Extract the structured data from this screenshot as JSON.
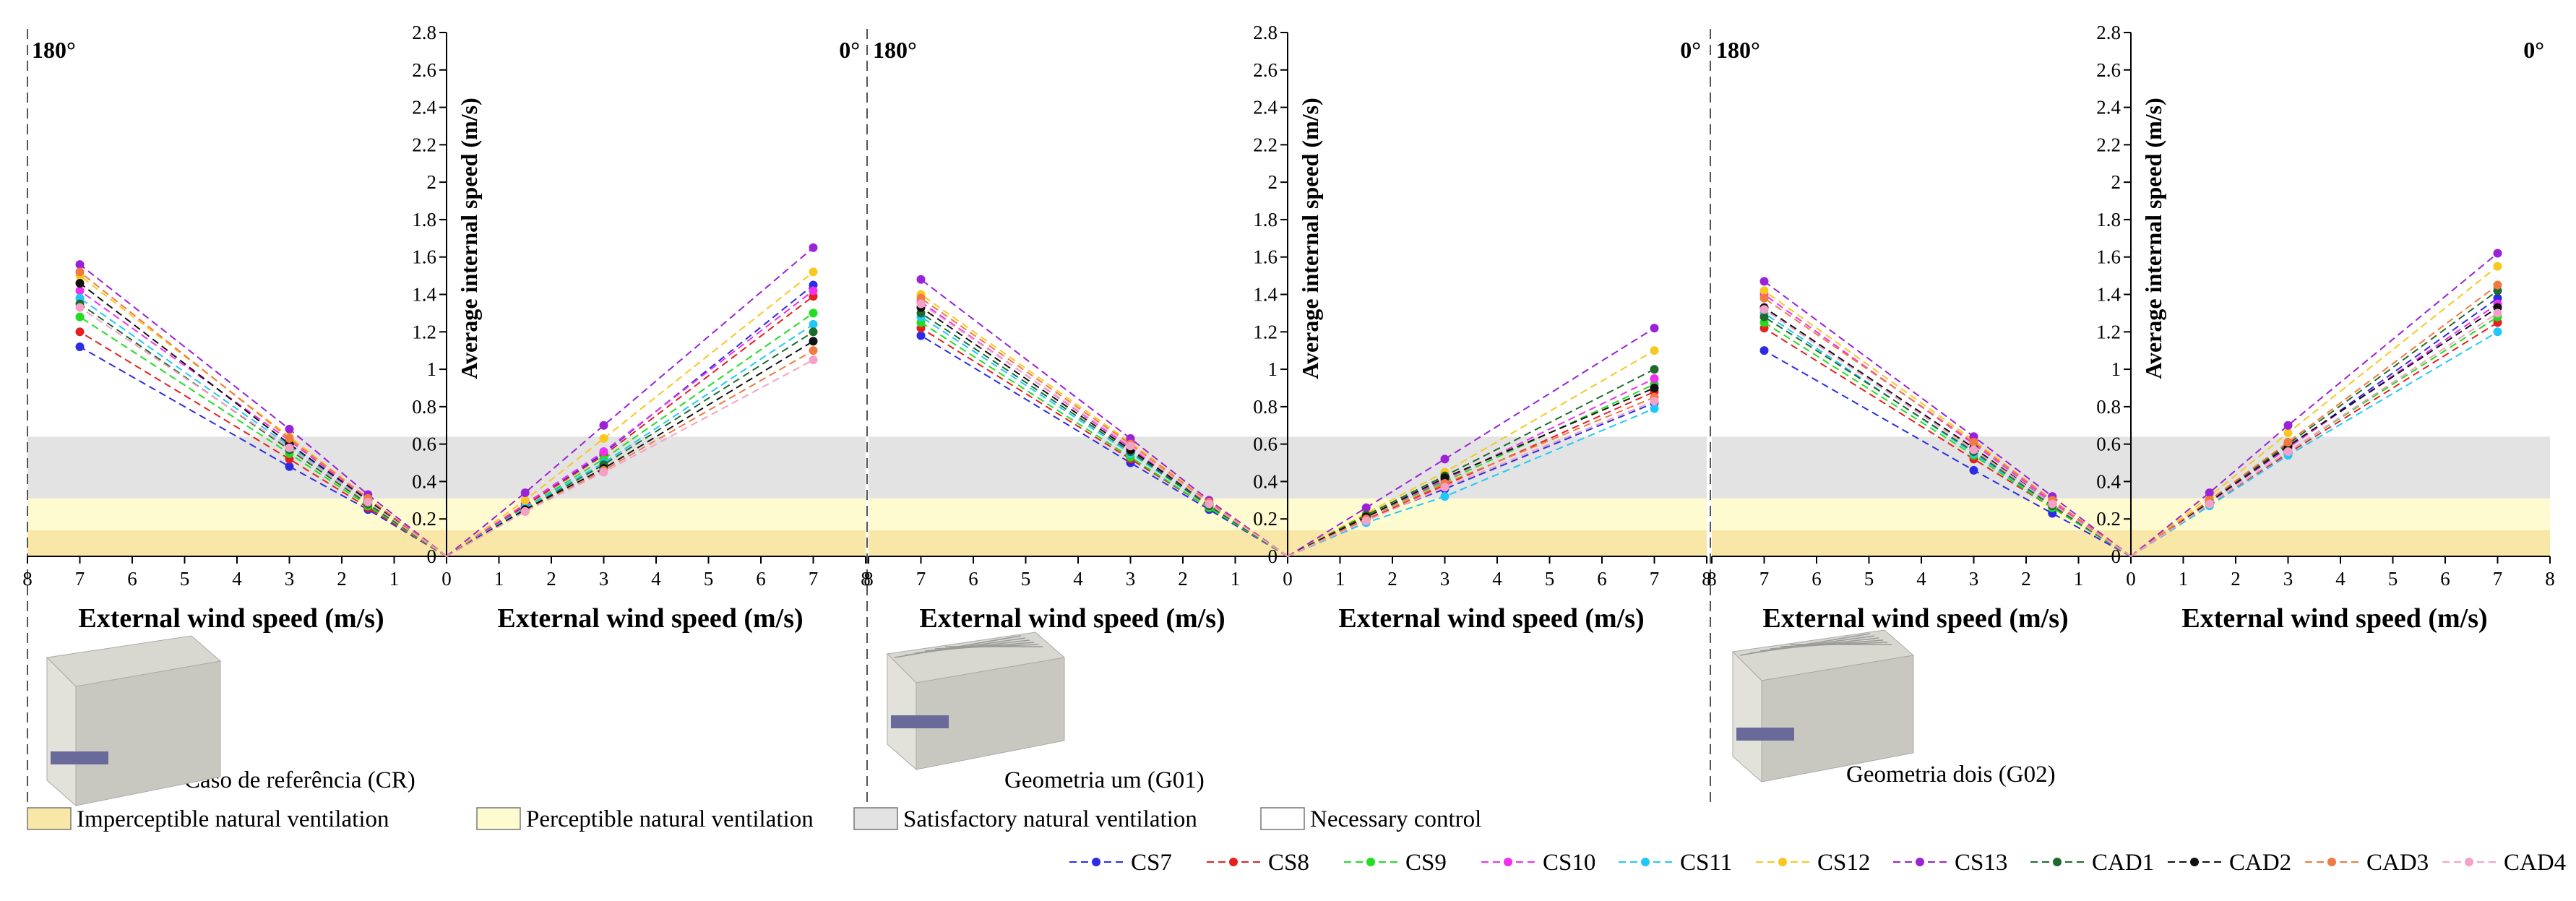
{
  "chart_data": {
    "type": "line",
    "y_axis_label": "Average internal speed (m/s)",
    "x_axis_label": "External wind speed (m/s)",
    "x_ticks": [
      0,
      1,
      2,
      3,
      4,
      5,
      6,
      7,
      8
    ],
    "y_ticks": [
      0,
      0.2,
      0.4,
      0.6,
      0.8,
      1,
      1.2,
      1.4,
      1.6,
      1.8,
      2,
      2.2,
      2.4,
      2.6,
      2.8
    ],
    "y_tick_labels": [
      "0",
      "0.2",
      "0.4",
      "0.6",
      "0.8",
      "1",
      "1.2",
      "1.4",
      "1.6",
      "1.8",
      "2",
      "2.2",
      "2.4",
      "2.6",
      "2.8"
    ],
    "xlim": [
      0,
      8
    ],
    "ylim": [
      0,
      2.8
    ],
    "x": [
      0,
      1.5,
      3,
      7
    ],
    "bands": [
      {
        "name": "Imperceptible natural ventilation",
        "from": 0,
        "to": 0.14,
        "color": "#f8e7a6"
      },
      {
        "name": "Perceptible natural ventilation",
        "from": 0.14,
        "to": 0.31,
        "color": "#fefbd0"
      },
      {
        "name": "Satisfactory natural ventilation",
        "from": 0.31,
        "to": 0.64,
        "color": "#e3e3e3"
      },
      {
        "name": "Necessary control",
        "from": 0.64,
        "to": 2.8,
        "color": "#ffffff"
      }
    ],
    "series_styles": [
      {
        "name": "CS7",
        "color": "#2c2ce6"
      },
      {
        "name": "CS8",
        "color": "#e62020"
      },
      {
        "name": "CS9",
        "color": "#22dd22"
      },
      {
        "name": "CS10",
        "color": "#f030f0"
      },
      {
        "name": "CS11",
        "color": "#20c8f8"
      },
      {
        "name": "CS12",
        "color": "#f8c820"
      },
      {
        "name": "CS13",
        "color": "#9a22d8"
      },
      {
        "name": "CAD1",
        "color": "#1f6b2c"
      },
      {
        "name": "CAD2",
        "color": "#111111"
      },
      {
        "name": "CAD3",
        "color": "#f07a40"
      },
      {
        "name": "CAD4",
        "color": "#f5a0c8"
      }
    ],
    "panels": [
      {
        "name": "Caso de referência (CR)",
        "caption": "Caso de referência (CR)",
        "left": {
          "direction": "180°",
          "series": [
            {
              "name": "CS7",
              "values": [
                0,
                0.25,
                0.48,
                1.12
              ]
            },
            {
              "name": "CS8",
              "values": [
                0,
                0.26,
                0.52,
                1.2
              ]
            },
            {
              "name": "CS9",
              "values": [
                0,
                0.27,
                0.55,
                1.28
              ]
            },
            {
              "name": "CS10",
              "values": [
                0,
                0.3,
                0.62,
                1.42
              ]
            },
            {
              "name": "CS11",
              "values": [
                0,
                0.29,
                0.59,
                1.38
              ]
            },
            {
              "name": "CS12",
              "values": [
                0,
                0.31,
                0.64,
                1.5
              ]
            },
            {
              "name": "CS13",
              "values": [
                0,
                0.33,
                0.68,
                1.56
              ]
            },
            {
              "name": "CAD1",
              "values": [
                0,
                0.28,
                0.57,
                1.35
              ]
            },
            {
              "name": "CAD2",
              "values": [
                0,
                0.3,
                0.6,
                1.46
              ]
            },
            {
              "name": "CAD3",
              "values": [
                0,
                0.31,
                0.63,
                1.52
              ]
            },
            {
              "name": "CAD4",
              "values": [
                0,
                0.29,
                0.58,
                1.33
              ]
            }
          ]
        },
        "right": {
          "direction": "0°",
          "series": [
            {
              "name": "CS7",
              "values": [
                0,
                0.27,
                0.55,
                1.45
              ]
            },
            {
              "name": "CS8",
              "values": [
                0,
                0.27,
                0.54,
                1.39
              ]
            },
            {
              "name": "CS9",
              "values": [
                0,
                0.26,
                0.52,
                1.3
              ]
            },
            {
              "name": "CS10",
              "values": [
                0,
                0.28,
                0.56,
                1.42
              ]
            },
            {
              "name": "CS11",
              "values": [
                0,
                0.26,
                0.5,
                1.24
              ]
            },
            {
              "name": "CS12",
              "values": [
                0,
                0.3,
                0.63,
                1.52
              ]
            },
            {
              "name": "CS13",
              "values": [
                0,
                0.34,
                0.7,
                1.65
              ]
            },
            {
              "name": "CAD1",
              "values": [
                0,
                0.25,
                0.49,
                1.2
              ]
            },
            {
              "name": "CAD2",
              "values": [
                0,
                0.25,
                0.47,
                1.15
              ]
            },
            {
              "name": "CAD3",
              "values": [
                0,
                0.24,
                0.46,
                1.1
              ]
            },
            {
              "name": "CAD4",
              "values": [
                0,
                0.24,
                0.45,
                1.05
              ]
            }
          ]
        }
      },
      {
        "name": "Geometria um (G01)",
        "caption": "Geometria um (G01)",
        "left": {
          "direction": "180°",
          "series": [
            {
              "name": "CS7",
              "values": [
                0,
                0.25,
                0.5,
                1.18
              ]
            },
            {
              "name": "CS8",
              "values": [
                0,
                0.26,
                0.52,
                1.22
              ]
            },
            {
              "name": "CS9",
              "values": [
                0,
                0.26,
                0.53,
                1.25
              ]
            },
            {
              "name": "CS10",
              "values": [
                0,
                0.28,
                0.58,
                1.36
              ]
            },
            {
              "name": "CS11",
              "values": [
                0,
                0.27,
                0.55,
                1.28
              ]
            },
            {
              "name": "CS12",
              "values": [
                0,
                0.29,
                0.61,
                1.4
              ]
            },
            {
              "name": "CS13",
              "values": [
                0,
                0.3,
                0.63,
                1.48
              ]
            },
            {
              "name": "CAD1",
              "values": [
                0,
                0.27,
                0.56,
                1.3
              ]
            },
            {
              "name": "CAD2",
              "values": [
                0,
                0.28,
                0.57,
                1.33
              ]
            },
            {
              "name": "CAD3",
              "values": [
                0,
                0.29,
                0.6,
                1.38
              ]
            },
            {
              "name": "CAD4",
              "values": [
                0,
                0.28,
                0.59,
                1.35
              ]
            }
          ]
        },
        "right": {
          "direction": "0°",
          "series": [
            {
              "name": "CS7",
              "values": [
                0,
                0.2,
                0.36,
                0.82
              ]
            },
            {
              "name": "CS8",
              "values": [
                0,
                0.2,
                0.38,
                0.88
              ]
            },
            {
              "name": "CS9",
              "values": [
                0,
                0.21,
                0.4,
                0.92
              ]
            },
            {
              "name": "CS10",
              "values": [
                0,
                0.21,
                0.41,
                0.95
              ]
            },
            {
              "name": "CS11",
              "values": [
                0,
                0.18,
                0.32,
                0.79
              ]
            },
            {
              "name": "CS12",
              "values": [
                0,
                0.23,
                0.45,
                1.1
              ]
            },
            {
              "name": "CS13",
              "values": [
                0,
                0.26,
                0.52,
                1.22
              ]
            },
            {
              "name": "CAD1",
              "values": [
                0,
                0.22,
                0.43,
                1.0
              ]
            },
            {
              "name": "CAD2",
              "values": [
                0,
                0.21,
                0.42,
                0.9
              ]
            },
            {
              "name": "CAD3",
              "values": [
                0,
                0.2,
                0.39,
                0.85
              ]
            },
            {
              "name": "CAD4",
              "values": [
                0,
                0.19,
                0.37,
                0.83
              ]
            }
          ]
        }
      },
      {
        "name": "Geometria dois (G02)",
        "caption": "Geometria dois (G02)",
        "left": {
          "direction": "180°",
          "series": [
            {
              "name": "CS7",
              "values": [
                0,
                0.23,
                0.46,
                1.1
              ]
            },
            {
              "name": "CS8",
              "values": [
                0,
                0.26,
                0.52,
                1.22
              ]
            },
            {
              "name": "CS9",
              "values": [
                0,
                0.26,
                0.54,
                1.25
              ]
            },
            {
              "name": "CS10",
              "values": [
                0,
                0.29,
                0.6,
                1.4
              ]
            },
            {
              "name": "CS11",
              "values": [
                0,
                0.27,
                0.55,
                1.3
              ]
            },
            {
              "name": "CS12",
              "values": [
                0,
                0.3,
                0.62,
                1.42
              ]
            },
            {
              "name": "CS13",
              "values": [
                0,
                0.32,
                0.64,
                1.47
              ]
            },
            {
              "name": "CAD1",
              "values": [
                0,
                0.27,
                0.56,
                1.28
              ]
            },
            {
              "name": "CAD2",
              "values": [
                0,
                0.28,
                0.58,
                1.33
              ]
            },
            {
              "name": "CAD3",
              "values": [
                0,
                0.3,
                0.61,
                1.38
              ]
            },
            {
              "name": "CAD4",
              "values": [
                0,
                0.28,
                0.57,
                1.32
              ]
            }
          ]
        },
        "right": {
          "direction": "0°",
          "series": [
            {
              "name": "CS7",
              "values": [
                0,
                0.29,
                0.58,
                1.38
              ]
            },
            {
              "name": "CS8",
              "values": [
                0,
                0.28,
                0.55,
                1.25
              ]
            },
            {
              "name": "CS9",
              "values": [
                0,
                0.28,
                0.56,
                1.28
              ]
            },
            {
              "name": "CS10",
              "values": [
                0,
                0.29,
                0.58,
                1.35
              ]
            },
            {
              "name": "CS11",
              "values": [
                0,
                0.27,
                0.54,
                1.2
              ]
            },
            {
              "name": "CS12",
              "values": [
                0,
                0.32,
                0.66,
                1.55
              ]
            },
            {
              "name": "CS13",
              "values": [
                0,
                0.34,
                0.7,
                1.62
              ]
            },
            {
              "name": "CAD1",
              "values": [
                0,
                0.3,
                0.6,
                1.42
              ]
            },
            {
              "name": "CAD2",
              "values": [
                0,
                0.29,
                0.59,
                1.33
              ]
            },
            {
              "name": "CAD3",
              "values": [
                0,
                0.3,
                0.61,
                1.45
              ]
            },
            {
              "name": "CAD4",
              "values": [
                0,
                0.28,
                0.56,
                1.3
              ]
            }
          ]
        }
      }
    ]
  }
}
